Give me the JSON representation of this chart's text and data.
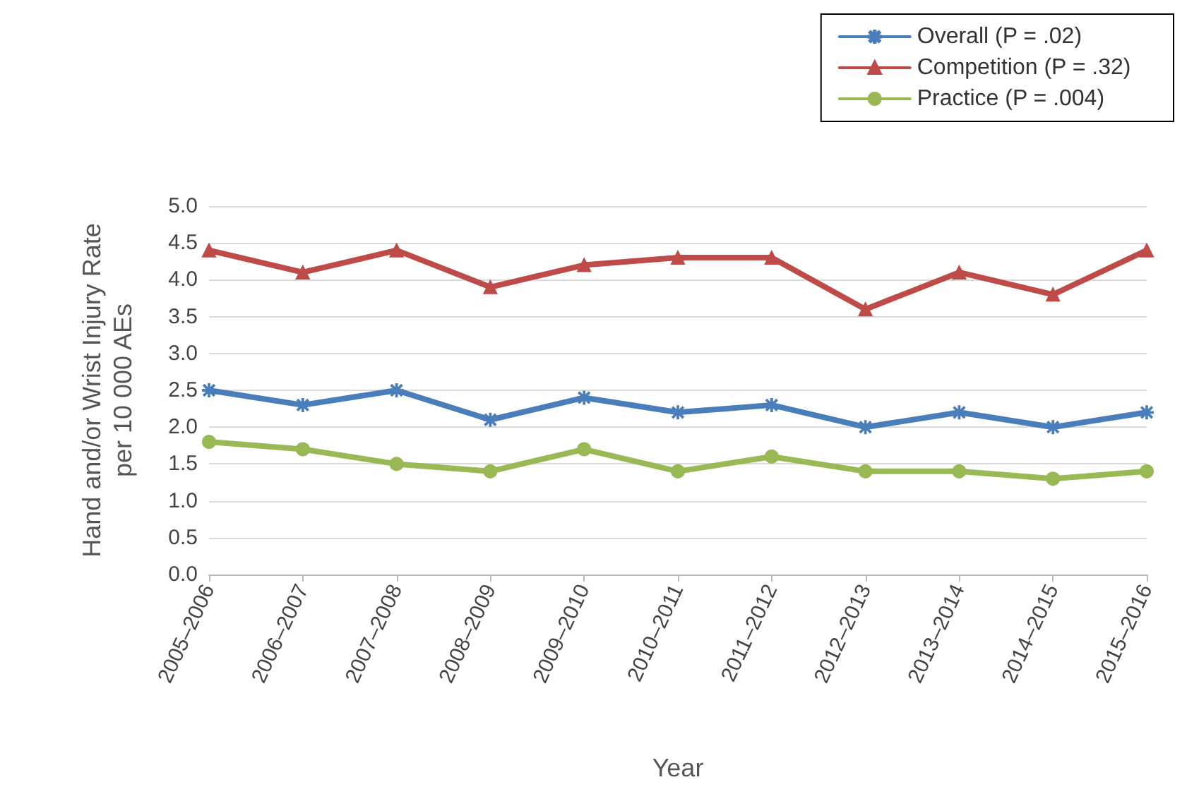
{
  "chart_data": {
    "type": "line",
    "xlabel": "Year",
    "ylabel": "Hand and/or Wrist Injury Rate\nper 10 000 AEs",
    "categories": [
      "2005–2006",
      "2006–2007",
      "2007–2008",
      "2008–2009",
      "2009–2010",
      "2010–2011",
      "2011–2012",
      "2012–2013",
      "2013–2014",
      "2014–2015",
      "2015–2016"
    ],
    "series": [
      {
        "name": "Overall (P = .02)",
        "color": "#4a7ebb",
        "marker": "cross",
        "values": [
          2.5,
          2.3,
          2.5,
          2.1,
          2.4,
          2.2,
          2.3,
          2.0,
          2.2,
          2.0,
          2.2
        ]
      },
      {
        "name": "Competition (P = .32)",
        "color": "#be4b48",
        "marker": "triangle",
        "values": [
          4.4,
          4.1,
          4.4,
          3.9,
          4.2,
          4.3,
          4.3,
          3.6,
          4.1,
          3.8,
          4.4
        ]
      },
      {
        "name": "Practice (P = .004)",
        "color": "#98b954",
        "marker": "circle",
        "values": [
          1.8,
          1.7,
          1.5,
          1.4,
          1.7,
          1.4,
          1.6,
          1.4,
          1.4,
          1.3,
          1.4
        ]
      }
    ],
    "ylim": [
      0,
      5
    ],
    "yticks": [
      {
        "value": 0,
        "label": "0.0"
      },
      {
        "value": 0.5,
        "label": "0.5"
      },
      {
        "value": 1,
        "label": "1.0"
      },
      {
        "value": 1.5,
        "label": "1.5"
      },
      {
        "value": 2,
        "label": "2.0"
      },
      {
        "value": 2.5,
        "label": "2.5"
      },
      {
        "value": 3,
        "label": "3.0"
      },
      {
        "value": 3.5,
        "label": "3.5"
      },
      {
        "value": 4,
        "label": "4.0"
      },
      {
        "value": 4.5,
        "label": "4.5"
      },
      {
        "value": 5,
        "label": "5.0"
      }
    ],
    "grid": "y",
    "legend": "top right",
    "line_style": "solid"
  }
}
